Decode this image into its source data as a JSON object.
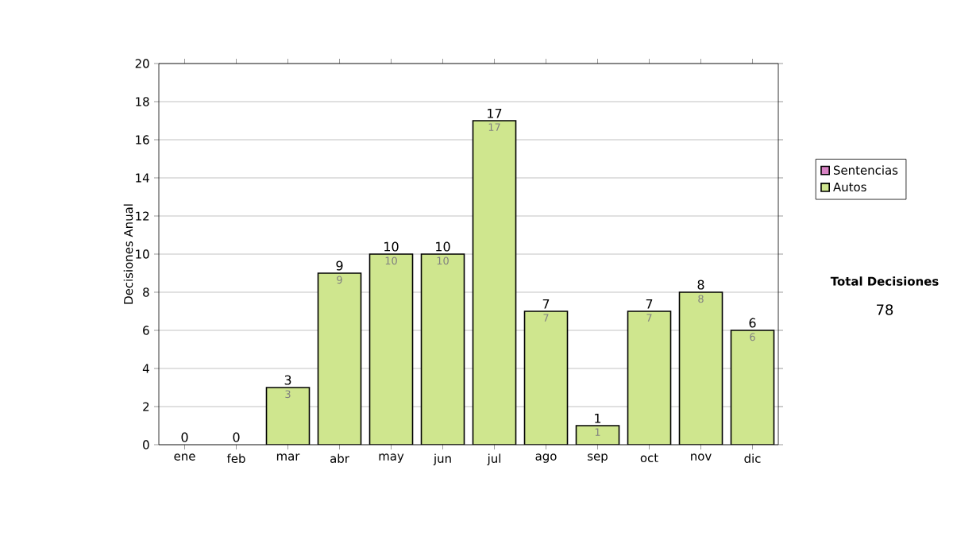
{
  "chart_data": {
    "type": "bar",
    "stacked": true,
    "ylabel": "Decisiones Anual",
    "categories": [
      "ene",
      "feb",
      "mar",
      "abr",
      "may",
      "jun",
      "jul",
      "ago",
      "sep",
      "oct",
      "nov",
      "dic"
    ],
    "series": [
      {
        "name": "Sentencias",
        "color": "#d883c4",
        "values": [
          0,
          0,
          0,
          0,
          0,
          0,
          0,
          0,
          0,
          0,
          0,
          0
        ]
      },
      {
        "name": "Autos",
        "color": "#cfe68e",
        "values": [
          0,
          0,
          3,
          9,
          10,
          10,
          17,
          7,
          1,
          7,
          8,
          6
        ],
        "value_labels": [
          null,
          null,
          "3",
          "9",
          "10",
          "10",
          "17",
          "7",
          "1",
          "7",
          "8",
          "6"
        ]
      }
    ],
    "totals": [
      "0",
      "0",
      "3",
      "9",
      "10",
      "10",
      "17",
      "7",
      "1",
      "7",
      "8",
      "6"
    ],
    "ylim": [
      0,
      20
    ],
    "yticks": [
      0,
      2,
      4,
      6,
      8,
      10,
      12,
      14,
      16,
      18,
      20
    ],
    "grid": "y",
    "legend": "right",
    "annotations": [
      "Total Decisiones",
      "78"
    ]
  }
}
